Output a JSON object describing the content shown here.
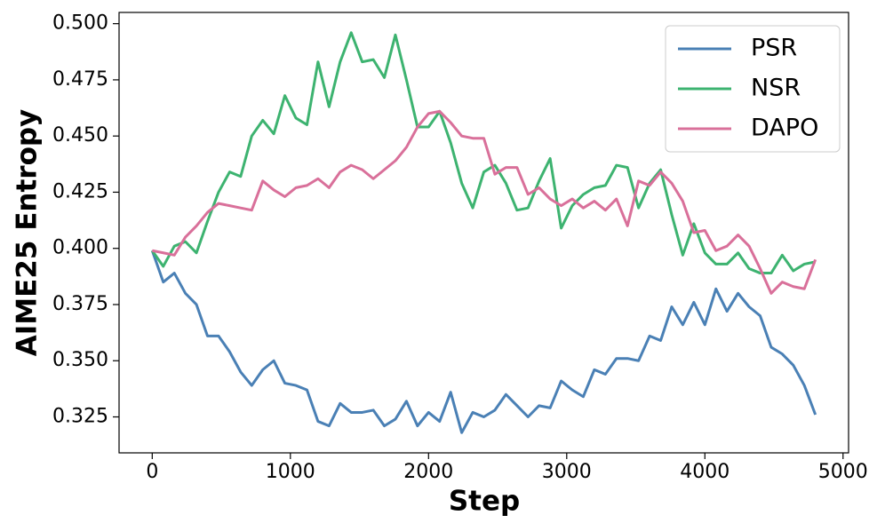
{
  "chart_data": {
    "type": "line",
    "x_label": "Step",
    "y_label": "AIME25 Entropy",
    "x": [
      0,
      80,
      160,
      240,
      320,
      400,
      480,
      560,
      640,
      720,
      800,
      880,
      960,
      1040,
      1120,
      1200,
      1280,
      1360,
      1440,
      1520,
      1600,
      1680,
      1760,
      1840,
      1920,
      2000,
      2080,
      2160,
      2240,
      2320,
      2400,
      2480,
      2560,
      2640,
      2720,
      2800,
      2880,
      2960,
      3040,
      3120,
      3200,
      3280,
      3360,
      3440,
      3520,
      3600,
      3680,
      3760,
      3840,
      3920,
      4000,
      4080,
      4160,
      4240,
      4320,
      4400,
      4480,
      4560,
      4640,
      4720,
      4800
    ],
    "series": [
      {
        "name": "PSR",
        "color": "#4a80b5",
        "values": [
          0.399,
          0.385,
          0.389,
          0.38,
          0.375,
          0.361,
          0.361,
          0.354,
          0.345,
          0.339,
          0.346,
          0.35,
          0.34,
          0.339,
          0.337,
          0.323,
          0.321,
          0.331,
          0.327,
          0.327,
          0.328,
          0.321,
          0.324,
          0.332,
          0.321,
          0.327,
          0.323,
          0.336,
          0.318,
          0.327,
          0.325,
          0.328,
          0.335,
          0.33,
          0.325,
          0.33,
          0.329,
          0.341,
          0.337,
          0.334,
          0.346,
          0.344,
          0.351,
          0.351,
          0.35,
          0.361,
          0.359,
          0.374,
          0.366,
          0.376,
          0.366,
          0.382,
          0.372,
          0.38,
          0.374,
          0.37,
          0.356,
          0.353,
          0.348,
          0.339,
          0.326
        ]
      },
      {
        "name": "NSR",
        "color": "#3db370",
        "values": [
          0.399,
          0.392,
          0.401,
          0.403,
          0.398,
          0.412,
          0.425,
          0.434,
          0.432,
          0.45,
          0.457,
          0.451,
          0.468,
          0.458,
          0.455,
          0.483,
          0.463,
          0.483,
          0.496,
          0.483,
          0.484,
          0.476,
          0.495,
          0.475,
          0.454,
          0.454,
          0.461,
          0.447,
          0.429,
          0.418,
          0.434,
          0.437,
          0.429,
          0.417,
          0.418,
          0.43,
          0.44,
          0.409,
          0.419,
          0.424,
          0.427,
          0.428,
          0.437,
          0.436,
          0.418,
          0.429,
          0.435,
          0.415,
          0.397,
          0.411,
          0.398,
          0.393,
          0.393,
          0.398,
          0.391,
          0.389,
          0.389,
          0.397,
          0.39,
          0.393,
          0.394
        ]
      },
      {
        "name": "DAPO",
        "color": "#d9709a",
        "values": [
          0.399,
          0.398,
          0.397,
          0.405,
          0.41,
          0.416,
          0.42,
          0.419,
          0.418,
          0.417,
          0.43,
          0.426,
          0.423,
          0.427,
          0.428,
          0.431,
          0.427,
          0.434,
          0.437,
          0.435,
          0.431,
          0.435,
          0.439,
          0.445,
          0.454,
          0.46,
          0.461,
          0.456,
          0.45,
          0.449,
          0.449,
          0.433,
          0.436,
          0.436,
          0.424,
          0.427,
          0.422,
          0.419,
          0.422,
          0.418,
          0.421,
          0.417,
          0.422,
          0.41,
          0.43,
          0.428,
          0.434,
          0.429,
          0.421,
          0.407,
          0.408,
          0.399,
          0.401,
          0.406,
          0.401,
          0.391,
          0.38,
          0.385,
          0.383,
          0.382,
          0.395
        ]
      }
    ],
    "xlim": [
      -240,
      5040
    ],
    "xticks": [
      0,
      1000,
      2000,
      3000,
      4000,
      5000
    ],
    "ylim": [
      0.309,
      0.505
    ],
    "yticks": [
      0.325,
      {
        "value": 0.35,
        "label": "0.350"
      },
      0.375,
      {
        "value": 0.4,
        "label": "0.400"
      },
      0.425,
      {
        "value": 0.45,
        "label": "0.450"
      },
      0.475,
      {
        "value": 0.5,
        "label": "0.500"
      }
    ],
    "legend": "upper right"
  }
}
